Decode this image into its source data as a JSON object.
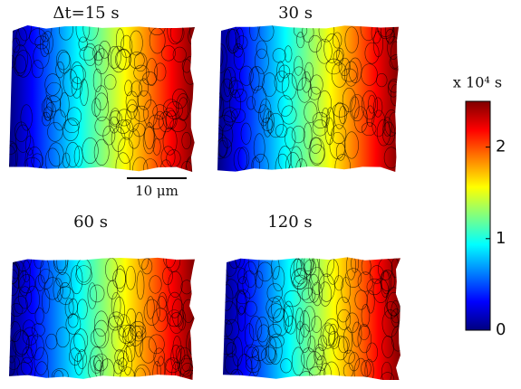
{
  "chart_data": {
    "type": "image-grid",
    "panels": [
      {
        "title": "Δt=15 s"
      },
      {
        "title": "30 s"
      },
      {
        "title": "60 s"
      },
      {
        "title": "120 s"
      }
    ],
    "scale_bar": "10 μm",
    "colorbar": {
      "label": "x 10⁴ s",
      "lim": [
        0,
        2.5
      ],
      "ticks": [
        0,
        1,
        2
      ],
      "colormap": "jet"
    }
  }
}
